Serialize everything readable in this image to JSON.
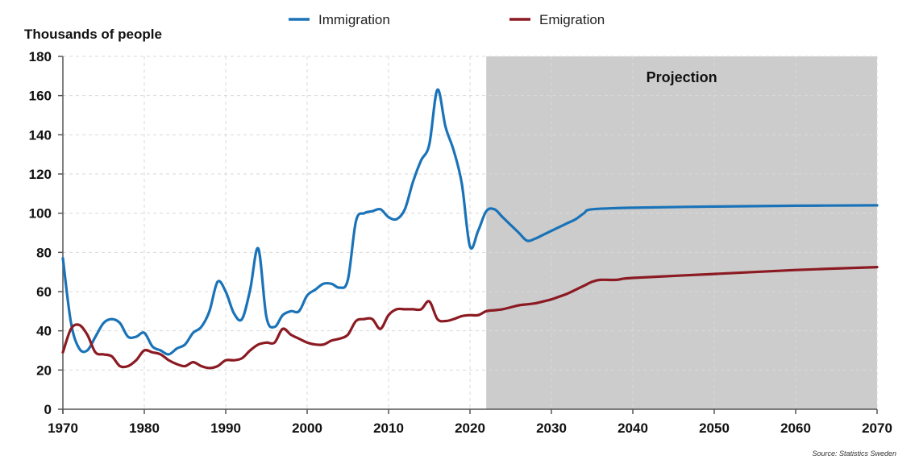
{
  "chart_data": {
    "type": "line",
    "ylabel": "Thousands of people",
    "xlim": [
      1970,
      2070
    ],
    "ylim": [
      0,
      180
    ],
    "x_ticks": [
      1970,
      1980,
      1990,
      2000,
      2010,
      2020,
      2030,
      2040,
      2050,
      2060,
      2070
    ],
    "y_ticks": [
      0,
      20,
      40,
      60,
      80,
      100,
      120,
      140,
      160,
      180
    ],
    "grid": true,
    "legend_position": "top-center",
    "projection": {
      "label": "Projection",
      "start": 2022,
      "end": 2070,
      "color": "#cccccc"
    },
    "source": "Source: Statistics Sweden",
    "series": [
      {
        "name": "Immigration",
        "color": "#1a73b8",
        "points": [
          [
            1970,
            77
          ],
          [
            1971,
            44
          ],
          [
            1972,
            31
          ],
          [
            1973,
            30
          ],
          [
            1974,
            37
          ],
          [
            1975,
            44
          ],
          [
            1976,
            46
          ],
          [
            1977,
            44
          ],
          [
            1978,
            37
          ],
          [
            1979,
            37
          ],
          [
            1980,
            39
          ],
          [
            1981,
            32
          ],
          [
            1982,
            30
          ],
          [
            1983,
            28
          ],
          [
            1984,
            31
          ],
          [
            1985,
            33
          ],
          [
            1986,
            39
          ],
          [
            1987,
            42
          ],
          [
            1988,
            50
          ],
          [
            1989,
            65
          ],
          [
            1990,
            60
          ],
          [
            1991,
            49
          ],
          [
            1992,
            46
          ],
          [
            1993,
            61
          ],
          [
            1994,
            82
          ],
          [
            1995,
            47
          ],
          [
            1996,
            42
          ],
          [
            1997,
            48
          ],
          [
            1998,
            50
          ],
          [
            1999,
            50
          ],
          [
            2000,
            58
          ],
          [
            2001,
            61
          ],
          [
            2002,
            64
          ],
          [
            2003,
            64
          ],
          [
            2004,
            62
          ],
          [
            2005,
            66
          ],
          [
            2006,
            96
          ],
          [
            2007,
            100
          ],
          [
            2008,
            101
          ],
          [
            2009,
            102
          ],
          [
            2010,
            98
          ],
          [
            2011,
            97
          ],
          [
            2012,
            102
          ],
          [
            2013,
            116
          ],
          [
            2014,
            127
          ],
          [
            2015,
            135
          ],
          [
            2016,
            163
          ],
          [
            2017,
            144
          ],
          [
            2018,
            132
          ],
          [
            2019,
            115
          ],
          [
            2020,
            83
          ],
          [
            2021,
            91
          ],
          [
            2022,
            101
          ],
          [
            2023,
            102
          ],
          [
            2024,
            98
          ],
          [
            2025,
            94
          ],
          [
            2026,
            90
          ],
          [
            2027,
            86
          ],
          [
            2028,
            87
          ],
          [
            2029,
            89
          ],
          [
            2030,
            91
          ],
          [
            2031,
            93
          ],
          [
            2032,
            95
          ],
          [
            2033,
            97
          ],
          [
            2034,
            100
          ],
          [
            2035,
            102
          ],
          [
            2040,
            102.8
          ],
          [
            2050,
            103.4
          ],
          [
            2060,
            103.8
          ],
          [
            2070,
            104
          ]
        ]
      },
      {
        "name": "Emigration",
        "color": "#8b1a22",
        "points": [
          [
            1970,
            29
          ],
          [
            1971,
            41
          ],
          [
            1972,
            43
          ],
          [
            1973,
            38
          ],
          [
            1974,
            29
          ],
          [
            1975,
            28
          ],
          [
            1976,
            27
          ],
          [
            1977,
            22
          ],
          [
            1978,
            22
          ],
          [
            1979,
            25
          ],
          [
            1980,
            30
          ],
          [
            1981,
            29
          ],
          [
            1982,
            28
          ],
          [
            1983,
            25
          ],
          [
            1984,
            23
          ],
          [
            1985,
            22
          ],
          [
            1986,
            24
          ],
          [
            1987,
            22
          ],
          [
            1988,
            21
          ],
          [
            1989,
            22
          ],
          [
            1990,
            25
          ],
          [
            1991,
            25
          ],
          [
            1992,
            26
          ],
          [
            1993,
            30
          ],
          [
            1994,
            33
          ],
          [
            1995,
            34
          ],
          [
            1996,
            34
          ],
          [
            1997,
            41
          ],
          [
            1998,
            38
          ],
          [
            1999,
            36
          ],
          [
            2000,
            34
          ],
          [
            2001,
            33
          ],
          [
            2002,
            33
          ],
          [
            2003,
            35
          ],
          [
            2004,
            36
          ],
          [
            2005,
            38
          ],
          [
            2006,
            45
          ],
          [
            2007,
            46
          ],
          [
            2008,
            46
          ],
          [
            2009,
            41
          ],
          [
            2010,
            48
          ],
          [
            2011,
            51
          ],
          [
            2012,
            51
          ],
          [
            2013,
            51
          ],
          [
            2014,
            51
          ],
          [
            2015,
            55
          ],
          [
            2016,
            46
          ],
          [
            2017,
            45
          ],
          [
            2018,
            46
          ],
          [
            2019,
            47.5
          ],
          [
            2020,
            48
          ],
          [
            2021,
            48
          ],
          [
            2022,
            50
          ],
          [
            2023,
            50.5
          ],
          [
            2024,
            51
          ],
          [
            2025,
            52
          ],
          [
            2026,
            53
          ],
          [
            2027,
            53.5
          ],
          [
            2028,
            54
          ],
          [
            2029,
            55
          ],
          [
            2030,
            56
          ],
          [
            2031,
            57.5
          ],
          [
            2032,
            59
          ],
          [
            2033,
            61
          ],
          [
            2034,
            63
          ],
          [
            2035,
            65
          ],
          [
            2036,
            66
          ],
          [
            2038,
            66
          ],
          [
            2040,
            67
          ],
          [
            2050,
            69
          ],
          [
            2060,
            71
          ],
          [
            2070,
            72.5
          ]
        ]
      }
    ]
  }
}
